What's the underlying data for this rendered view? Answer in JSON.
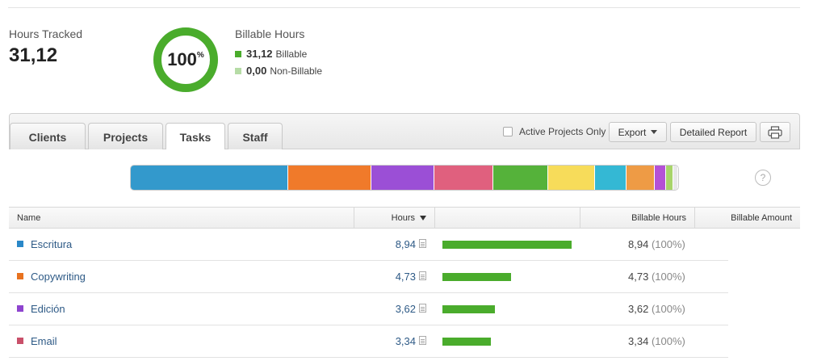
{
  "summary": {
    "hours_tracked_label": "Hours Tracked",
    "hours_tracked_value": "31,12",
    "donut_percent": "100",
    "donut_percent_symbol": "%",
    "donut_fraction": 1.0,
    "billable_hours_label": "Billable Hours",
    "billable_value": "31,12",
    "billable_label": "Billable",
    "non_billable_value": "0,00",
    "non_billable_label": "Non-Billable"
  },
  "colors": {
    "billable": "#4aac2c",
    "non_billable": "#b6dca6",
    "link": "#2e5a86"
  },
  "tabs": [
    {
      "label": "Clients",
      "active": false
    },
    {
      "label": "Projects",
      "active": false
    },
    {
      "label": "Tasks",
      "active": true
    },
    {
      "label": "Staff",
      "active": false
    }
  ],
  "toolbar": {
    "active_projects_label": "Active Projects Only",
    "export_label": "Export",
    "detailed_report_label": "Detailed Report",
    "print_icon": "printer-icon"
  },
  "distribution": [
    {
      "color": "#3399cc",
      "share": 28.7
    },
    {
      "color": "#f07a2a",
      "share": 15.2
    },
    {
      "color": "#9b4fd6",
      "share": 11.6
    },
    {
      "color": "#e0607e",
      "share": 10.7
    },
    {
      "color": "#55b23a",
      "share": 10.0
    },
    {
      "color": "#f7dc5a",
      "share": 8.6
    },
    {
      "color": "#34b8d4",
      "share": 5.7
    },
    {
      "color": "#ee9b45",
      "share": 5.3
    },
    {
      "color": "#b451d6",
      "share": 2.0
    },
    {
      "color": "#a8d46a",
      "share": 1.4
    },
    {
      "color": "#e8e8e8",
      "share": 0.8
    }
  ],
  "help_icon": "?",
  "table": {
    "headers": {
      "name": "Name",
      "hours": "Hours",
      "billable_hours": "Billable Hours",
      "billable_amount": "Billable Amount"
    },
    "max_hours": 8.94,
    "rows": [
      {
        "color": "#2a88c8",
        "name": "Escritura",
        "hours": "8,94",
        "hours_num": 8.94,
        "billable": "8,94",
        "billable_pct": "(100%)"
      },
      {
        "color": "#e8721f",
        "name": "Copywriting",
        "hours": "4,73",
        "hours_num": 4.73,
        "billable": "4,73",
        "billable_pct": "(100%)"
      },
      {
        "color": "#8e44cf",
        "name": "Edición",
        "hours": "3,62",
        "hours_num": 3.62,
        "billable": "3,62",
        "billable_pct": "(100%)"
      },
      {
        "color": "#c9506a",
        "name": "Email",
        "hours": "3,34",
        "hours_num": 3.34,
        "billable": "3,34",
        "billable_pct": "(100%)"
      }
    ]
  }
}
